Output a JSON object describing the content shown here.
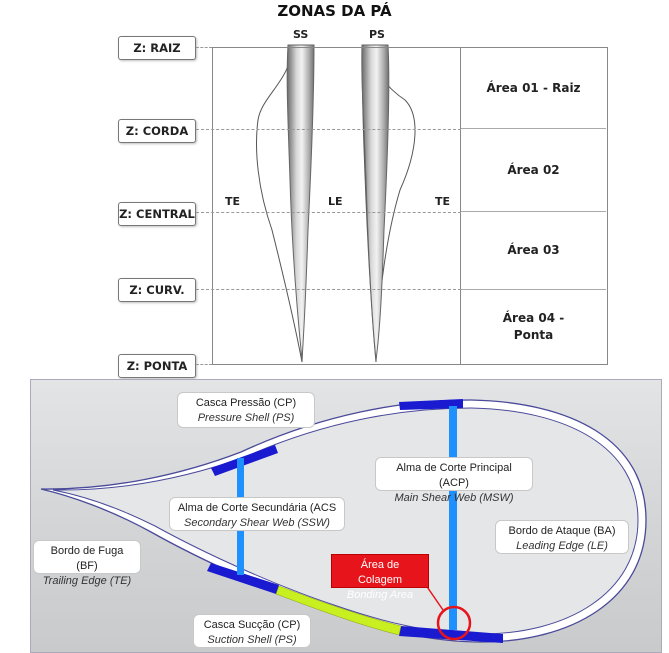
{
  "title": "ZONAS DA PÁ",
  "blade": {
    "ss_label": "SS",
    "ps_label": "PS",
    "te_left": "TE",
    "le": "LE",
    "te_right": "TE"
  },
  "zones": [
    "Z: RAIZ",
    "Z: CORDA",
    "Z: CENTRAL",
    "Z: CURV.",
    "Z: PONTA"
  ],
  "areas": [
    {
      "line1": "Área 01 - Raiz",
      "line2": ""
    },
    {
      "line1": "Área 02",
      "line2": ""
    },
    {
      "line1": "Área 03",
      "line2": ""
    },
    {
      "line1": "Área 04 -",
      "line2": "Ponta"
    }
  ],
  "cross_section": {
    "pressure_shell": {
      "title": "Casca Pressão (CP)",
      "subtitle": "Pressure Shell (PS)"
    },
    "main_shear_web": {
      "title": "Alma de Corte Principal (ACP)",
      "subtitle": "Main Shear Web (MSW)"
    },
    "secondary_shear_web": {
      "title": "Alma de Corte Secundária (ACS",
      "subtitle": "Secondary Shear Web (SSW)"
    },
    "trailing_edge": {
      "title": "Bordo de Fuga (BF)",
      "subtitle": "Trailing Edge (TE)"
    },
    "leading_edge": {
      "title": "Bordo de Ataque (BA)",
      "subtitle": "Leading Edge (LE)"
    },
    "bonding_area": {
      "title": "Área de Colagem",
      "subtitle": "Bonding Area"
    },
    "suction_shell": {
      "title": "Casca Sucção (CP)",
      "subtitle": "Suction Shell (PS)"
    }
  },
  "colors": {
    "spar_cap": "#1a1ad0",
    "shear_web": "#1e90ff",
    "bond_line": "#c8f020",
    "highlight": "#e8141c"
  }
}
